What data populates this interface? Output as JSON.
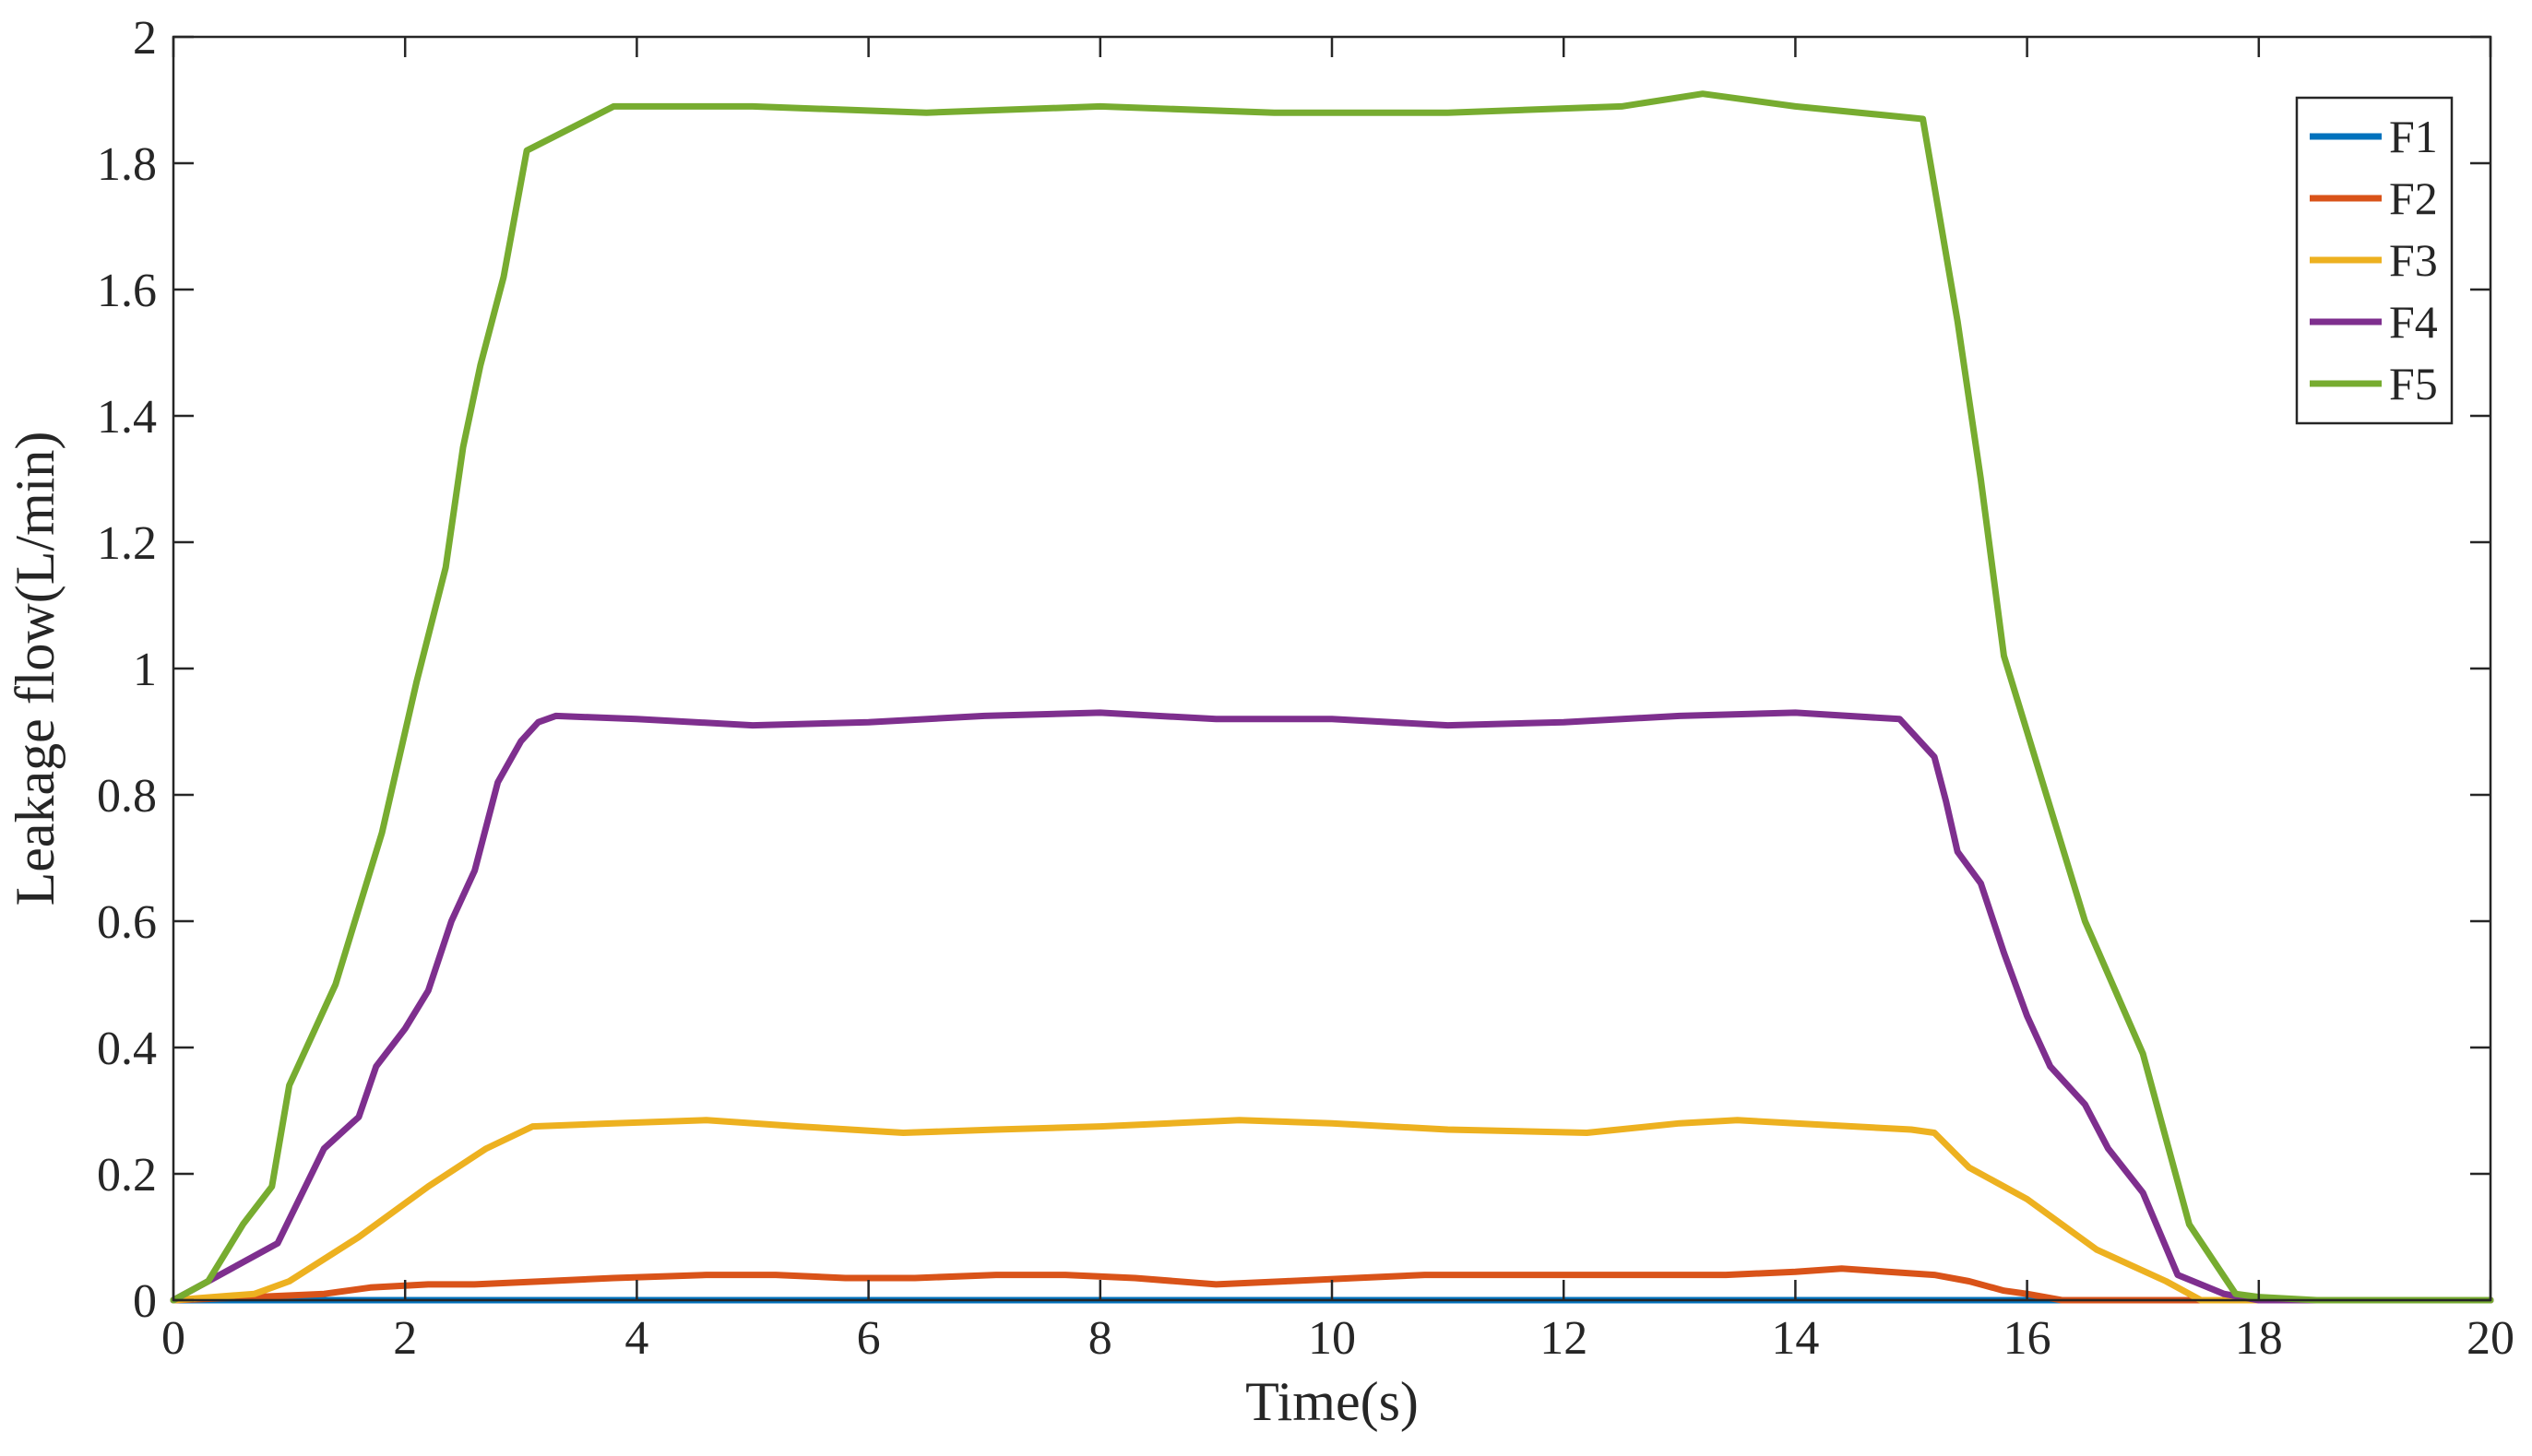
{
  "chart_data": {
    "type": "line",
    "title": "",
    "xlabel": "Time(s)",
    "ylabel": "Leakage flow(L/min)",
    "xlim": [
      0,
      20
    ],
    "ylim": [
      0,
      2
    ],
    "xticks": [
      0,
      2,
      4,
      6,
      8,
      10,
      12,
      14,
      16,
      18,
      20
    ],
    "yticks": [
      0,
      0.2,
      0.4,
      0.6,
      0.8,
      1,
      1.2,
      1.4,
      1.6,
      1.8,
      2
    ],
    "xtick_labels": [
      "0",
      "2",
      "4",
      "6",
      "8",
      "10",
      "12",
      "14",
      "16",
      "18",
      "20"
    ],
    "ytick_labels": [
      "0",
      "0.2",
      "0.4",
      "0.6",
      "0.8",
      "1",
      "1.2",
      "1.4",
      "1.6",
      "1.8",
      "2"
    ],
    "grid": false,
    "legend_position": "top-right",
    "series": [
      {
        "name": "F1",
        "color": "#0072BD",
        "x": [
          0,
          20
        ],
        "y": [
          0,
          0
        ]
      },
      {
        "name": "F2",
        "color": "#D95319",
        "x": [
          0,
          0.7,
          1.3,
          1.7,
          2.2,
          2.6,
          3.2,
          3.8,
          4.6,
          5.2,
          5.8,
          6.4,
          7.1,
          7.7,
          8.3,
          9.0,
          9.6,
          10.2,
          10.8,
          11.5,
          12.1,
          12.7,
          13.4,
          14.0,
          14.4,
          14.8,
          15.2,
          15.5,
          15.8,
          16.0,
          16.3,
          16.6,
          17.0,
          17.5,
          20
        ],
        "y": [
          0,
          0.005,
          0.01,
          0.02,
          0.025,
          0.025,
          0.03,
          0.035,
          0.04,
          0.04,
          0.035,
          0.035,
          0.04,
          0.04,
          0.035,
          0.025,
          0.03,
          0.035,
          0.04,
          0.04,
          0.04,
          0.04,
          0.04,
          0.045,
          0.05,
          0.045,
          0.04,
          0.03,
          0.015,
          0.01,
          0.0,
          0.0,
          0.0,
          0.0,
          0.0
        ]
      },
      {
        "name": "F3",
        "color": "#EDB120",
        "x": [
          0,
          0.7,
          1.0,
          1.6,
          2.2,
          2.7,
          3.1,
          3.8,
          4.6,
          5.4,
          6.3,
          7.1,
          8.0,
          9.2,
          10.0,
          11.0,
          12.2,
          13.0,
          13.5,
          14.0,
          15.0,
          15.2,
          15.5,
          16.0,
          16.6,
          17.2,
          17.5,
          20
        ],
        "y": [
          0,
          0.01,
          0.03,
          0.1,
          0.18,
          0.24,
          0.275,
          0.28,
          0.285,
          0.275,
          0.265,
          0.27,
          0.275,
          0.285,
          0.28,
          0.27,
          0.265,
          0.28,
          0.285,
          0.28,
          0.27,
          0.265,
          0.21,
          0.16,
          0.08,
          0.03,
          0.0,
          0.0
        ]
      },
      {
        "name": "F4",
        "color": "#7E2F8E",
        "x": [
          0,
          0.3,
          0.9,
          1.3,
          1.6,
          1.75,
          2.0,
          2.2,
          2.4,
          2.6,
          2.8,
          3.0,
          3.15,
          3.3,
          4.0,
          5.0,
          6.0,
          7.0,
          8.0,
          9.0,
          10.0,
          11.0,
          12.0,
          13.0,
          14.0,
          14.9,
          15.2,
          15.3,
          15.4,
          15.6,
          15.8,
          16.0,
          16.2,
          16.5,
          16.7,
          17.0,
          17.3,
          17.7,
          18.0,
          20
        ],
        "y": [
          0,
          0.03,
          0.09,
          0.24,
          0.29,
          0.37,
          0.43,
          0.49,
          0.6,
          0.68,
          0.82,
          0.885,
          0.915,
          0.925,
          0.92,
          0.91,
          0.915,
          0.925,
          0.93,
          0.92,
          0.92,
          0.91,
          0.915,
          0.925,
          0.93,
          0.92,
          0.86,
          0.79,
          0.71,
          0.66,
          0.55,
          0.45,
          0.37,
          0.31,
          0.24,
          0.17,
          0.04,
          0.01,
          0.0,
          0.0
        ]
      },
      {
        "name": "F5",
        "color": "#77AC30",
        "x": [
          0,
          0.3,
          0.6,
          0.85,
          1.0,
          1.4,
          1.8,
          2.1,
          2.35,
          2.5,
          2.65,
          2.85,
          3.05,
          3.8,
          5.0,
          6.5,
          8.0,
          9.5,
          11.0,
          12.5,
          13.2,
          14.0,
          15.1,
          15.4,
          15.6,
          15.8,
          16.0,
          16.5,
          17.0,
          17.4,
          17.8,
          18.0,
          18.5,
          20
        ],
        "y": [
          0,
          0.03,
          0.12,
          0.18,
          0.34,
          0.5,
          0.74,
          0.98,
          1.16,
          1.35,
          1.48,
          1.62,
          1.82,
          1.89,
          1.89,
          1.88,
          1.89,
          1.88,
          1.88,
          1.89,
          1.91,
          1.89,
          1.87,
          1.55,
          1.3,
          1.02,
          0.9,
          0.6,
          0.39,
          0.12,
          0.01,
          0.005,
          0.0,
          0.0
        ]
      }
    ]
  }
}
